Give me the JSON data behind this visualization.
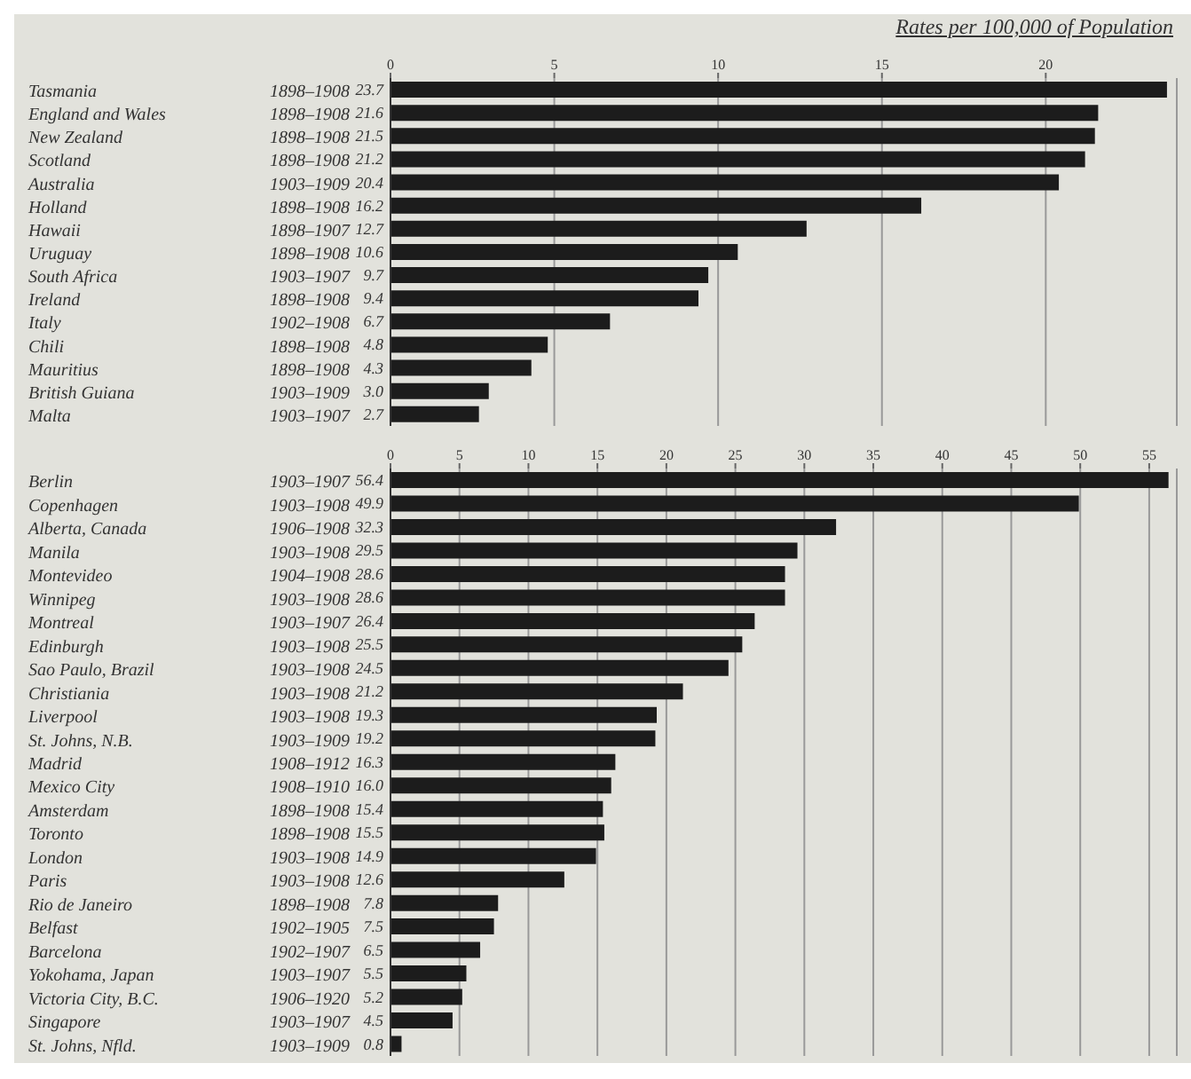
{
  "chart_data": [
    {
      "type": "bar",
      "orientation": "horizontal",
      "subtitle": "Rates per 100,000 of Population",
      "categories": [
        "Tasmania 1898–1908",
        "England and Wales 1898–1908",
        "New Zealand 1898–1908",
        "Scotland 1898–1908",
        "Australia 1903–1909",
        "Holland 1898–1908",
        "Hawaii 1898–1907",
        "Uruguay 1898–1908",
        "South Africa 1903–1907",
        "Ireland 1898–1908",
        "Italy 1902–1908",
        "Chili 1898–1908",
        "Mauritius 1898–1908",
        "British Guiana 1903–1909",
        "Malta 1903–1907"
      ],
      "values": [
        23.7,
        21.6,
        21.5,
        21.2,
        20.4,
        16.2,
        12.7,
        10.6,
        9.7,
        9.4,
        6.7,
        4.8,
        4.3,
        3.0,
        2.7
      ],
      "value_labels": [
        "23.7",
        "21.6",
        "21.5",
        "21.2",
        "20.4",
        "16.2",
        "12.7",
        "10.6",
        "9.7",
        "9.4",
        "6.7",
        "4.8",
        "4.3",
        "3.0",
        "2.7"
      ],
      "color": "#1c1c1c",
      "xlim": [
        0,
        24
      ],
      "xticks": [
        0,
        5,
        10,
        15,
        20
      ],
      "grid": "x"
    },
    {
      "type": "bar",
      "orientation": "horizontal",
      "categories": [
        "Berlin 1903–1907",
        "Copenhagen 1903–1908",
        "Alberta, Canada 1906–1908",
        "Manila 1903–1908",
        "Montevideo 1904–1908",
        "Winnipeg 1903–1908",
        "Montreal 1903–1907",
        "Edinburgh 1903–1908",
        "Sao Paulo, Brazil 1903–1908",
        "Christiania 1903–1908",
        "Liverpool 1903–1908",
        "St. Johns, N.B. 1903–1909",
        "Madrid 1908–1912",
        "Mexico City 1908–1910",
        "Amsterdam 1898–1908",
        "Toronto 1898–1908",
        "London 1903–1908",
        "Paris 1903–1908",
        "Rio de Janeiro 1898–1908",
        "Belfast 1902–1905",
        "Barcelona 1902–1907",
        "Yokohama, Japan 1903–1907",
        "Victoria City, B.C. 1906–1920",
        "Singapore 1903–1907",
        "St. Johns, Nfld. 1903–1909"
      ],
      "values": [
        56.4,
        49.9,
        32.3,
        29.5,
        28.6,
        28.6,
        26.4,
        25.5,
        24.5,
        21.2,
        19.3,
        19.2,
        16.3,
        16.0,
        15.4,
        15.5,
        14.9,
        12.6,
        7.8,
        7.5,
        6.5,
        5.5,
        5.2,
        4.5,
        0.8
      ],
      "value_labels": [
        "56.4",
        "49.9",
        "32.3",
        "29.5",
        "28.6",
        "28.6",
        "26.4",
        "25.5",
        "24.5",
        "21.2",
        "19.3",
        "19.2",
        "16.3",
        "16.0",
        "15.4",
        "15.5",
        "14.9",
        "12.6",
        "7.8",
        "7.5",
        "6.5",
        "5.5",
        "5.2",
        "4.5",
        "0.8"
      ],
      "color": "#1c1c1c",
      "xlim": [
        0,
        57
      ],
      "xticks": [
        0,
        5,
        10,
        15,
        20,
        25,
        30,
        35,
        40,
        45,
        50,
        55
      ],
      "grid": "x"
    }
  ]
}
